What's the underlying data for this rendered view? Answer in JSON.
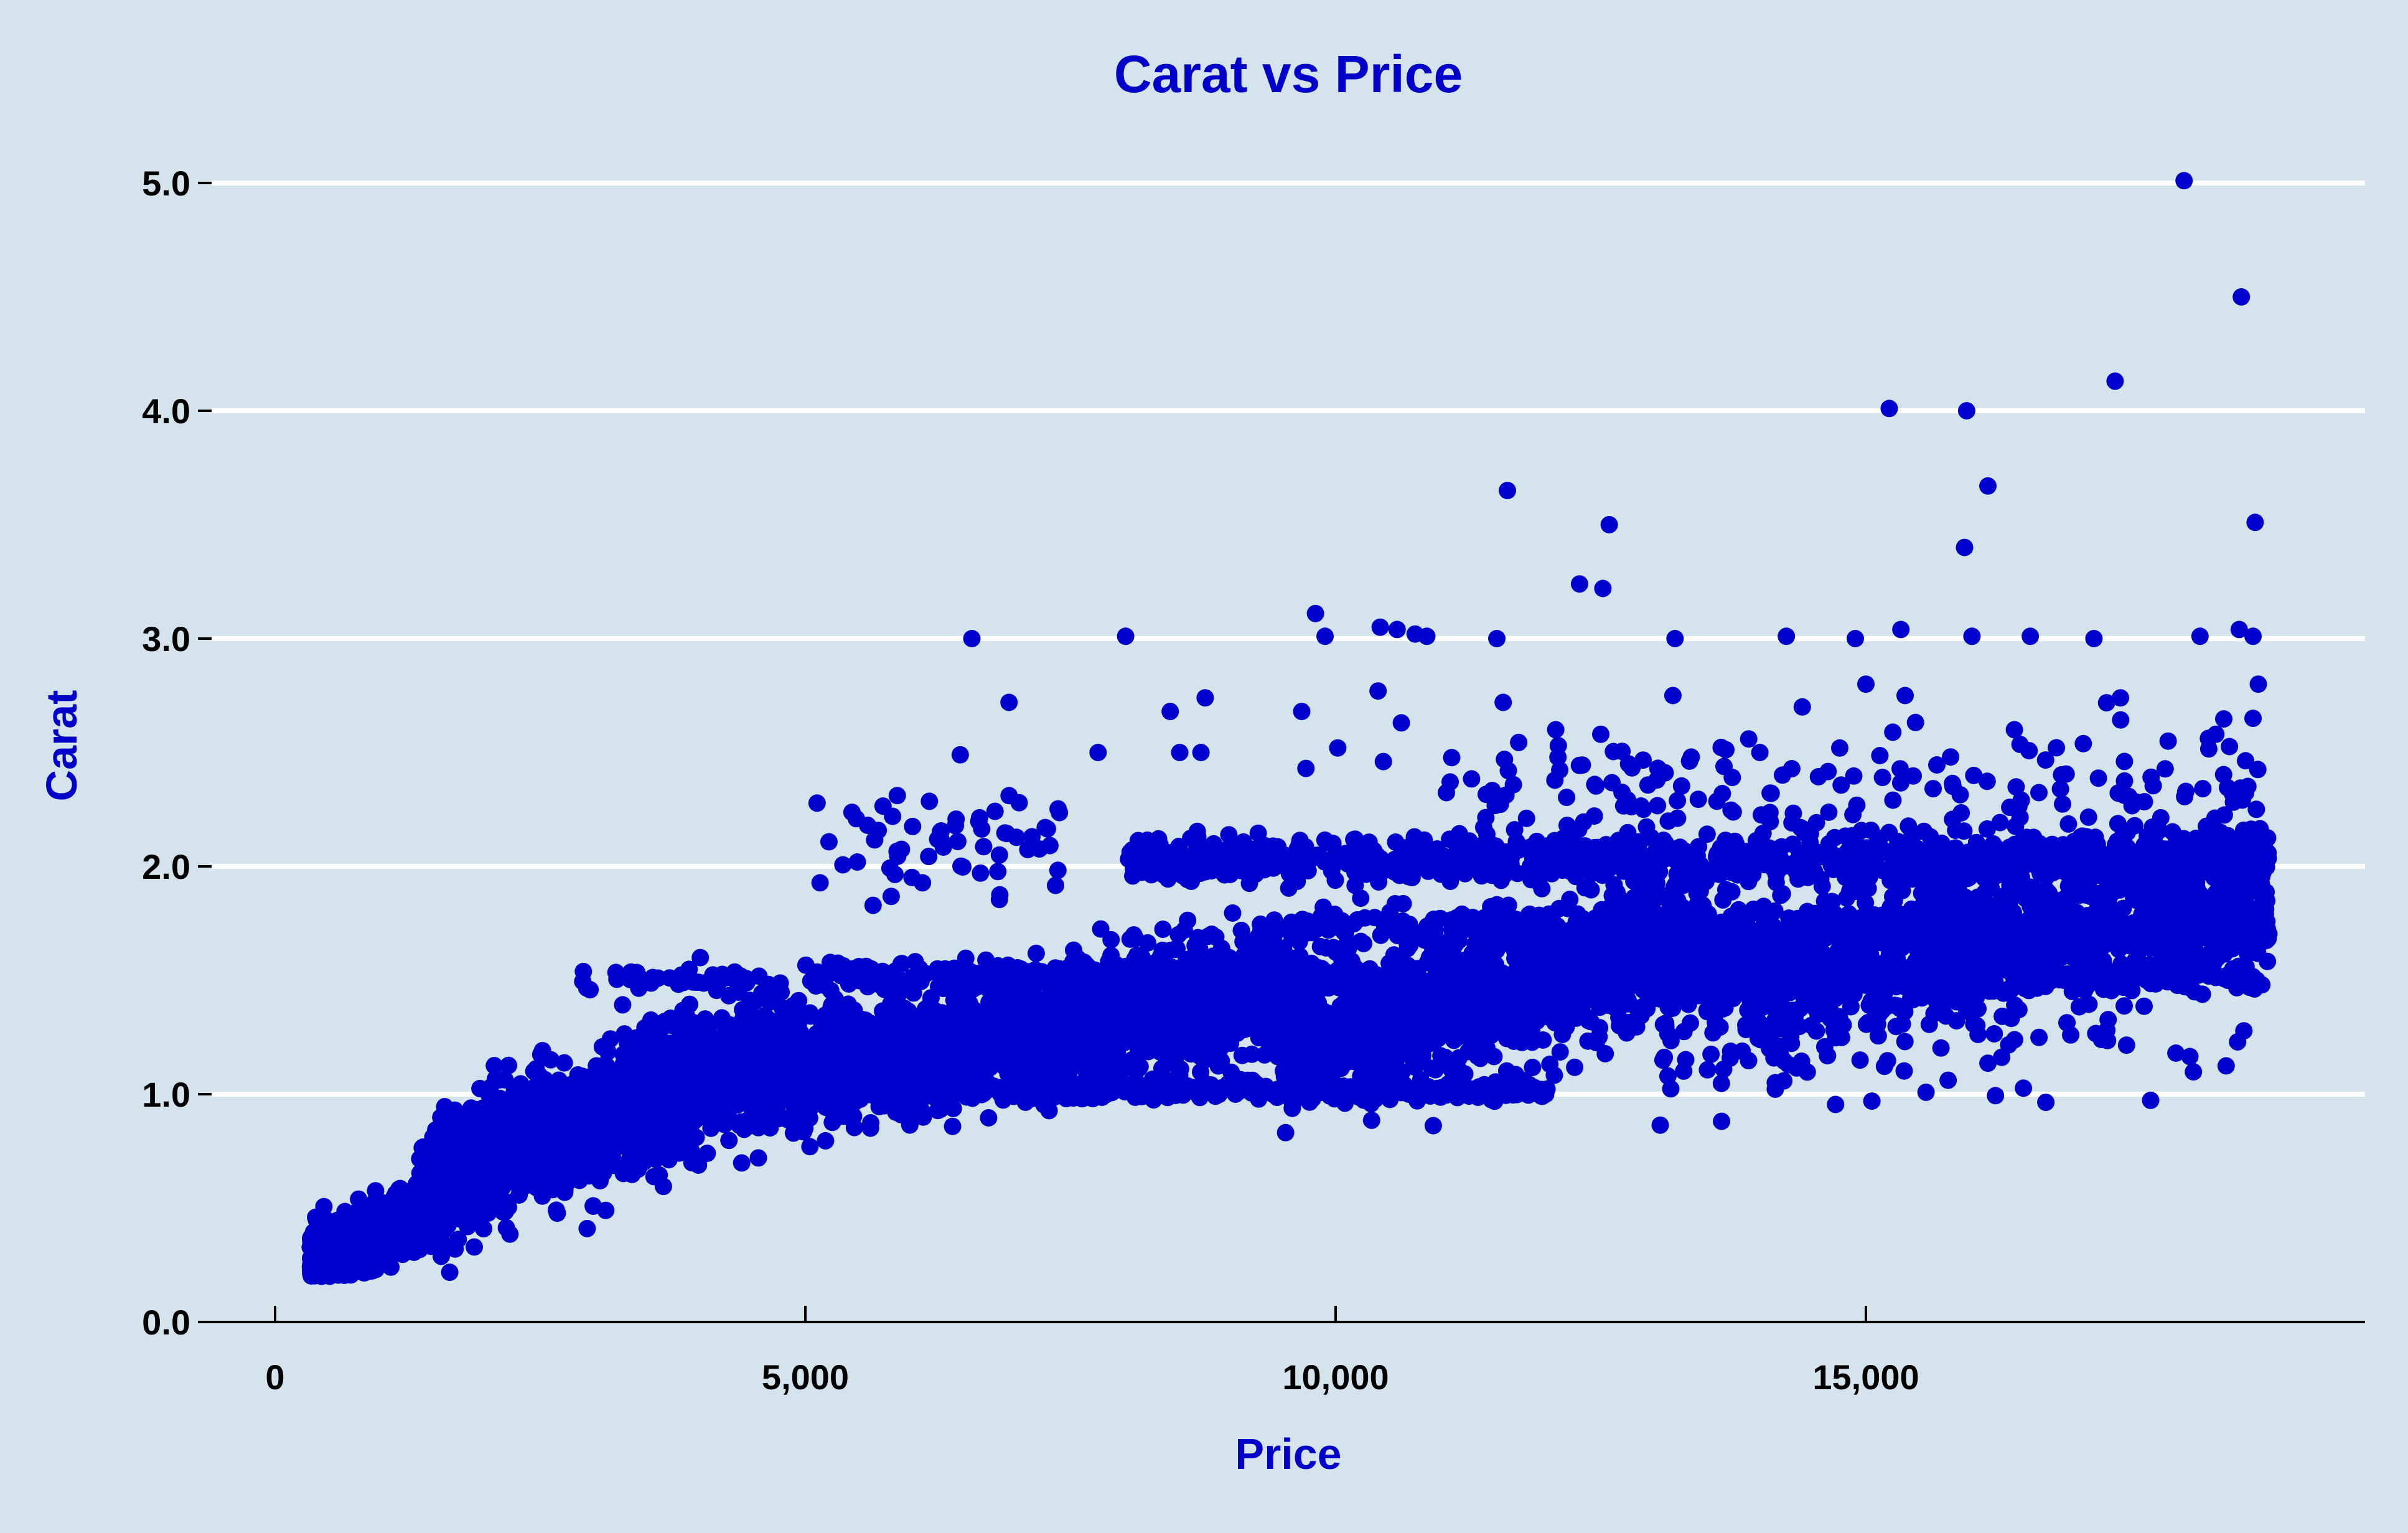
{
  "chart_data": {
    "type": "scatter",
    "title": "Carat vs Price",
    "xlabel": "Price",
    "ylabel": "Carat",
    "xlim": [
      -1200,
      19550
    ],
    "ylim": [
      0,
      5.2
    ],
    "x_ticks": [
      {
        "value": 0,
        "label": "0"
      },
      {
        "value": 5000,
        "label": "5,000"
      },
      {
        "value": 10000,
        "label": "10,000"
      },
      {
        "value": 15000,
        "label": "15,000"
      }
    ],
    "y_ticks": [
      {
        "value": 0,
        "label": "0.0"
      },
      {
        "value": 1,
        "label": "1.0"
      },
      {
        "value": 2,
        "label": "2.0"
      },
      {
        "value": 3,
        "label": "3.0"
      },
      {
        "value": 4,
        "label": "4.0"
      },
      {
        "value": 5,
        "label": "5.0"
      }
    ],
    "grid": {
      "horizontal": true,
      "vertical": false
    },
    "legend": "none",
    "point_color": "#0000cd",
    "background": "#d5e4ec",
    "points": [
      [
        18000,
        5.01
      ],
      [
        18540,
        4.5
      ],
      [
        17350,
        4.13
      ],
      [
        15220,
        4.01
      ],
      [
        15950,
        4.0
      ],
      [
        11620,
        3.65
      ],
      [
        16150,
        3.67
      ],
      [
        12580,
        3.5
      ],
      [
        18670,
        3.51
      ],
      [
        15930,
        3.4
      ],
      [
        12300,
        3.24
      ],
      [
        12520,
        3.22
      ],
      [
        9810,
        3.11
      ],
      [
        10420,
        3.05
      ],
      [
        10580,
        3.04
      ],
      [
        10750,
        3.02
      ],
      [
        10860,
        3.01
      ],
      [
        9900,
        3.01
      ],
      [
        6570,
        3.0
      ],
      [
        8020,
        3.01
      ],
      [
        11520,
        3.0
      ],
      [
        13200,
        3.0
      ],
      [
        14250,
        3.01
      ],
      [
        14900,
        3.0
      ],
      [
        15330,
        3.04
      ],
      [
        16000,
        3.01
      ],
      [
        16550,
        3.01
      ],
      [
        17150,
        3.0
      ],
      [
        18150,
        3.01
      ],
      [
        18520,
        3.04
      ],
      [
        18650,
        3.01
      ],
      [
        15000,
        2.8
      ],
      [
        18700,
        2.8
      ],
      [
        13180,
        2.75
      ],
      [
        15370,
        2.75
      ],
      [
        10400,
        2.77
      ],
      [
        6920,
        2.72
      ],
      [
        8770,
        2.74
      ],
      [
        11580,
        2.72
      ],
      [
        14400,
        2.7
      ],
      [
        17400,
        2.74
      ],
      [
        9680,
        2.68
      ],
      [
        8440,
        2.68
      ],
      [
        10620,
        2.63
      ],
      [
        12500,
        2.58
      ],
      [
        6460,
        2.49
      ],
      [
        7760,
        2.5
      ],
      [
        8530,
        2.5
      ],
      [
        8730,
        2.5
      ],
      [
        9720,
        2.43
      ],
      [
        10020,
        2.52
      ],
      [
        10450,
        2.46
      ],
      [
        12100,
        2.53
      ],
      [
        14000,
        2.5
      ],
      [
        16400,
        2.6
      ],
      [
        17850,
        2.55
      ],
      [
        18300,
        2.58
      ],
      [
        18650,
        2.65
      ]
    ],
    "clusters": [
      {
        "x_range": [
          330,
          1350
        ],
        "y_center": 0.36,
        "y_spread": 0.13,
        "count": 700
      },
      {
        "x_range": [
          1350,
          2600
        ],
        "y_center": 0.72,
        "y_spread": 0.22,
        "count": 900
      },
      {
        "x_range": [
          2600,
          4800
        ],
        "y_center": 1.0,
        "y_spread": 0.26,
        "count": 1200
      },
      {
        "x_range": [
          4800,
          9500
        ],
        "y_center": 1.28,
        "y_spread": 0.24,
        "count": 1600
      },
      {
        "x_range": [
          9500,
          13500
        ],
        "y_center": 1.45,
        "y_spread": 0.28,
        "count": 1200
      },
      {
        "x_range": [
          13500,
          18800
        ],
        "y_center": 1.68,
        "y_spread": 0.28,
        "count": 1100
      }
    ],
    "bands": [
      {
        "x_range": [
          8000,
          18800
        ],
        "y_center": 2.03,
        "y_spread": 0.05,
        "count": 900
      },
      {
        "x_range": [
          5000,
          18800
        ],
        "y_center": 1.52,
        "y_spread": 0.03,
        "count": 600
      },
      {
        "x_range": [
          9500,
          18800
        ],
        "y_center": 1.72,
        "y_spread": 0.04,
        "count": 500
      },
      {
        "x_range": [
          5000,
          12000
        ],
        "y_center": 1.02,
        "y_spread": 0.02,
        "count": 500
      },
      {
        "x_range": [
          2900,
          4500
        ],
        "y_center": 1.51,
        "y_spread": 0.02,
        "count": 40
      },
      {
        "x_range": [
          5100,
          7400
        ],
        "y_center": 2.1,
        "y_spread": 0.12,
        "count": 60
      },
      {
        "x_range": [
          11000,
          18800
        ],
        "y_center": 2.3,
        "y_spread": 0.15,
        "count": 200
      },
      {
        "x_range": [
          13000,
          18800
        ],
        "y_center": 1.2,
        "y_spread": 0.15,
        "count": 80
      }
    ]
  }
}
